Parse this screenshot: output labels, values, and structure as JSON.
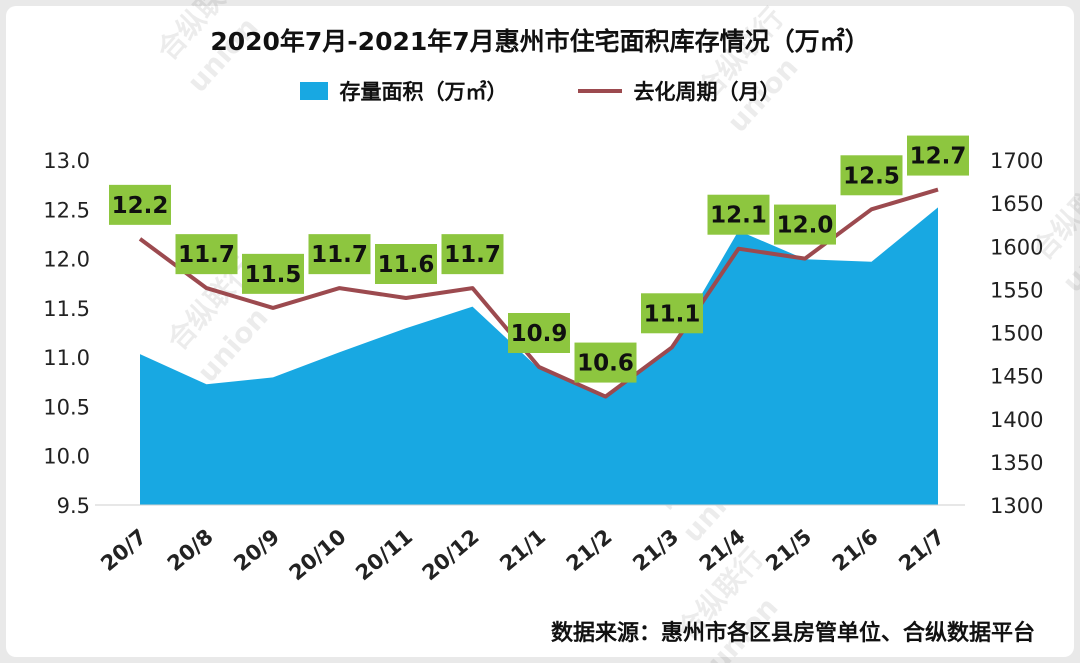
{
  "page": {
    "title": "2020年7月-2021年7月惠州市住宅面积库存情况（万㎡）",
    "source": "数据来源：惠州市各区县房管单位、合纵数据平台",
    "watermark": {
      "cn": "合纵联行",
      "en": "union"
    }
  },
  "legend": {
    "area_label": "存量面积（万㎡）",
    "line_label": "去化周期（月）"
  },
  "chart_data": {
    "type": "area",
    "title": "2020年7月-2021年7月惠州市住宅面积库存情况（万㎡）",
    "categories": [
      "20/7",
      "20/8",
      "20/9",
      "20/10",
      "20/11",
      "20/12",
      "21/1",
      "21/2",
      "21/3",
      "21/4",
      "21/5",
      "21/6",
      "21/7"
    ],
    "series": [
      {
        "name": "存量面积（万㎡）",
        "chart_type": "area",
        "axis": "right",
        "color": "#18a8e2",
        "values": [
          1475,
          1440,
          1448,
          1477,
          1505,
          1530,
          1458,
          1425,
          1485,
          1618,
          1585,
          1582,
          1645
        ]
      },
      {
        "name": "去化周期（月）",
        "chart_type": "line",
        "axis": "left",
        "color": "#9c4a4f",
        "values": [
          12.2,
          11.7,
          11.5,
          11.7,
          11.6,
          11.7,
          10.9,
          10.6,
          11.1,
          12.1,
          12.0,
          12.5,
          12.7
        ],
        "labels": [
          "12.2",
          "11.7",
          "11.5",
          "11.7",
          "11.6",
          "11.7",
          "10.9",
          "10.6",
          "11.1",
          "12.1",
          "12.0",
          "12.5",
          "12.7"
        ]
      }
    ],
    "left_axis": {
      "min": 9.5,
      "max": 13.0,
      "step": 0.5,
      "ticks": [
        "13.0",
        "12.5",
        "12.0",
        "11.5",
        "11.0",
        "10.5",
        "10.0",
        "9.5"
      ]
    },
    "right_axis": {
      "min": 1300,
      "max": 1700,
      "step": 50,
      "ticks": [
        "1700",
        "1650",
        "1600",
        "1550",
        "1500",
        "1450",
        "1400",
        "1350",
        "1300"
      ]
    },
    "data_label_bg": "#8dc63f",
    "grid": false,
    "legend_position": "top"
  }
}
